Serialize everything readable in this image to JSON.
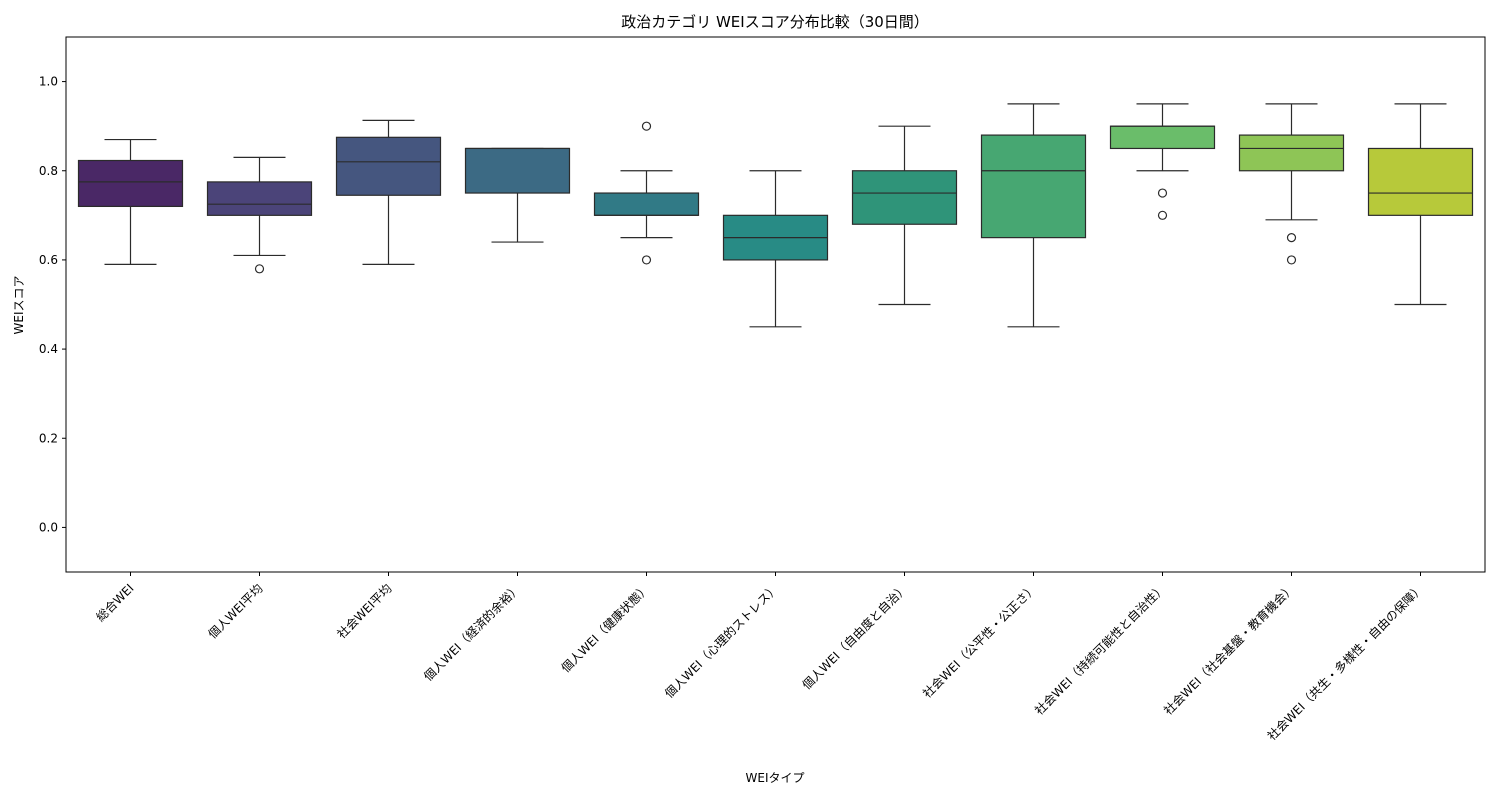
{
  "chart_data": {
    "type": "box",
    "title": "政治カテゴリ WEIスコア分布比較（30日間）",
    "xlabel": "WEIタイプ",
    "ylabel": "WEIスコア",
    "ylim": [
      -0.1,
      1.1
    ],
    "yticks": [
      "0.0",
      "0.2",
      "0.4",
      "0.6",
      "0.8",
      "1.0"
    ],
    "grid": false,
    "categories": [
      "総合WEI",
      "個人WEI平均",
      "社会WEI平均",
      "個人WEI（経済的余裕）",
      "個人WEI（健康状態）",
      "個人WEI（心理的ストレス）",
      "個人WEI（自由度と自治）",
      "社会WEI（公平性・公正さ）",
      "社会WEI（持続可能性と自治性）",
      "社会WEI（社会基盤・教育機会）",
      "社会WEI（共生・多様性・自由の保障）"
    ],
    "boxes": [
      {
        "whislo": 0.59,
        "q1": 0.72,
        "med": 0.775,
        "q3": 0.823,
        "whishi": 0.87,
        "fliers": []
      },
      {
        "whislo": 0.61,
        "q1": 0.7,
        "med": 0.725,
        "q3": 0.775,
        "whishi": 0.83,
        "fliers": [
          0.58
        ]
      },
      {
        "whislo": 0.59,
        "q1": 0.745,
        "med": 0.82,
        "q3": 0.875,
        "whishi": 0.913,
        "fliers": []
      },
      {
        "whislo": 0.64,
        "q1": 0.75,
        "med": 0.85,
        "q3": 0.85,
        "whishi": 0.85,
        "fliers": []
      },
      {
        "whislo": 0.65,
        "q1": 0.7,
        "med": 0.7,
        "q3": 0.75,
        "whishi": 0.8,
        "fliers": [
          0.9,
          0.6
        ]
      },
      {
        "whislo": 0.45,
        "q1": 0.6,
        "med": 0.65,
        "q3": 0.7,
        "whishi": 0.8,
        "fliers": []
      },
      {
        "whislo": 0.5,
        "q1": 0.68,
        "med": 0.75,
        "q3": 0.8,
        "whishi": 0.9,
        "fliers": []
      },
      {
        "whislo": 0.45,
        "q1": 0.65,
        "med": 0.8,
        "q3": 0.88,
        "whishi": 0.95,
        "fliers": []
      },
      {
        "whislo": 0.8,
        "q1": 0.85,
        "med": 0.9,
        "q3": 0.9,
        "whishi": 0.95,
        "fliers": [
          0.75,
          0.7
        ]
      },
      {
        "whislo": 0.69,
        "q1": 0.8,
        "med": 0.85,
        "q3": 0.88,
        "whishi": 0.95,
        "fliers": [
          0.65,
          0.6
        ]
      },
      {
        "whislo": 0.5,
        "q1": 0.7,
        "med": 0.75,
        "q3": 0.85,
        "whishi": 0.95,
        "fliers": []
      }
    ],
    "colors": [
      "#4a2866",
      "#4b4479",
      "#45567f",
      "#3c6a84",
      "#317a86",
      "#288b85",
      "#2f9479",
      "#47a772",
      "#6abd6a",
      "#8ec556",
      "#b7c93a"
    ]
  }
}
